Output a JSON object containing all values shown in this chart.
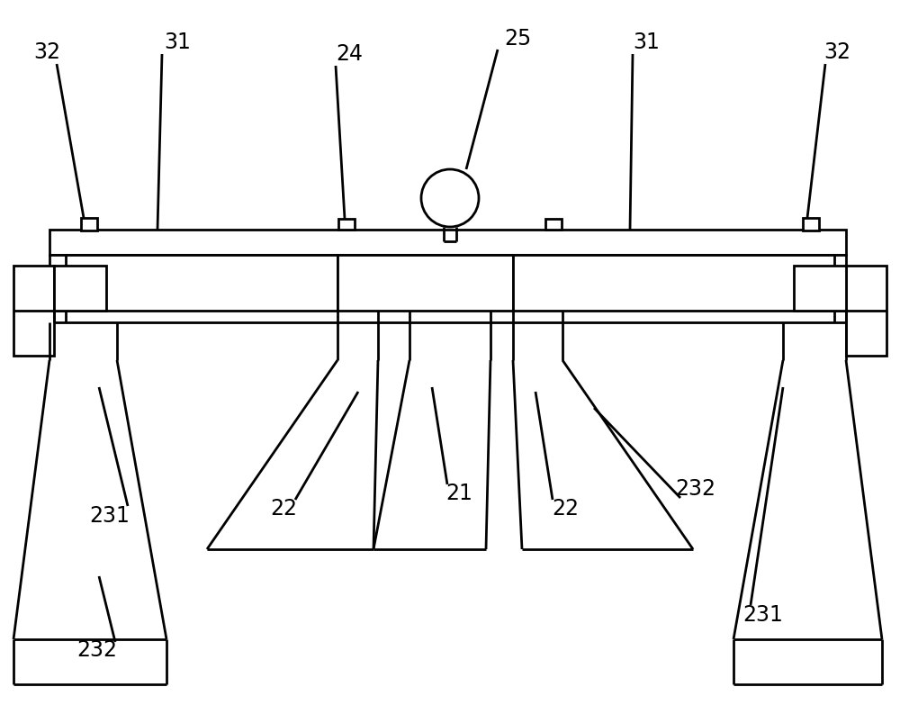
{
  "bg_color": "#ffffff",
  "line_color": "#000000",
  "lw": 2.0,
  "fig_width": 10.0,
  "fig_height": 7.83,
  "dpi": 100
}
